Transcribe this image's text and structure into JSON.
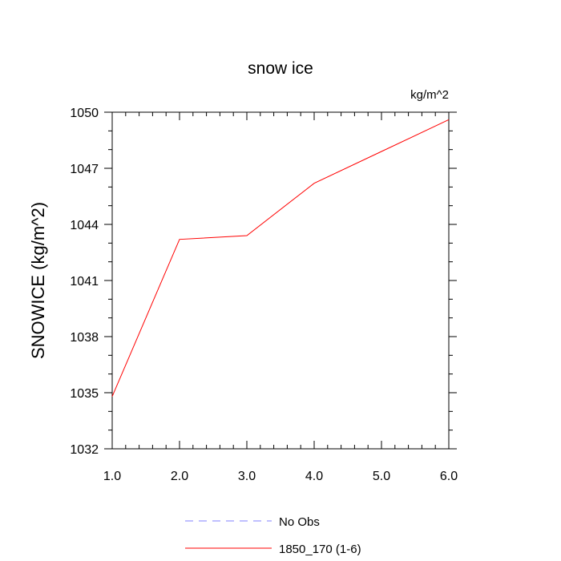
{
  "chart_data": {
    "type": "line",
    "title": "snow ice",
    "units_label": "kg/m^2",
    "xlabel": "",
    "ylabel": "SNOWICE  (kg/m^2)",
    "xlim": [
      1.0,
      6.0
    ],
    "ylim": [
      1032,
      1050
    ],
    "x_ticks": [
      "1.0",
      "2.0",
      "3.0",
      "4.0",
      "5.0",
      "6.0"
    ],
    "y_ticks": [
      "1032",
      "1035",
      "1038",
      "1041",
      "1044",
      "1047",
      "1050"
    ],
    "x_tick_values": [
      1,
      2,
      3,
      4,
      5,
      6
    ],
    "y_tick_values": [
      1032,
      1035,
      1038,
      1041,
      1044,
      1047,
      1050
    ],
    "grid": false,
    "legend_position": "bottom-center",
    "series": [
      {
        "name": "1850_170 (1-6)",
        "color": "#ff0000",
        "style": "solid",
        "x": [
          1,
          2,
          3,
          4,
          5,
          6
        ],
        "values": [
          1034.8,
          1043.2,
          1043.4,
          1046.2,
          1047.9,
          1049.6
        ]
      }
    ],
    "legend": [
      {
        "label": "No Obs",
        "color": "#8080ff",
        "style": "dashed"
      },
      {
        "label": "1850_170 (1-6)",
        "color": "#ff0000",
        "style": "solid"
      }
    ]
  }
}
